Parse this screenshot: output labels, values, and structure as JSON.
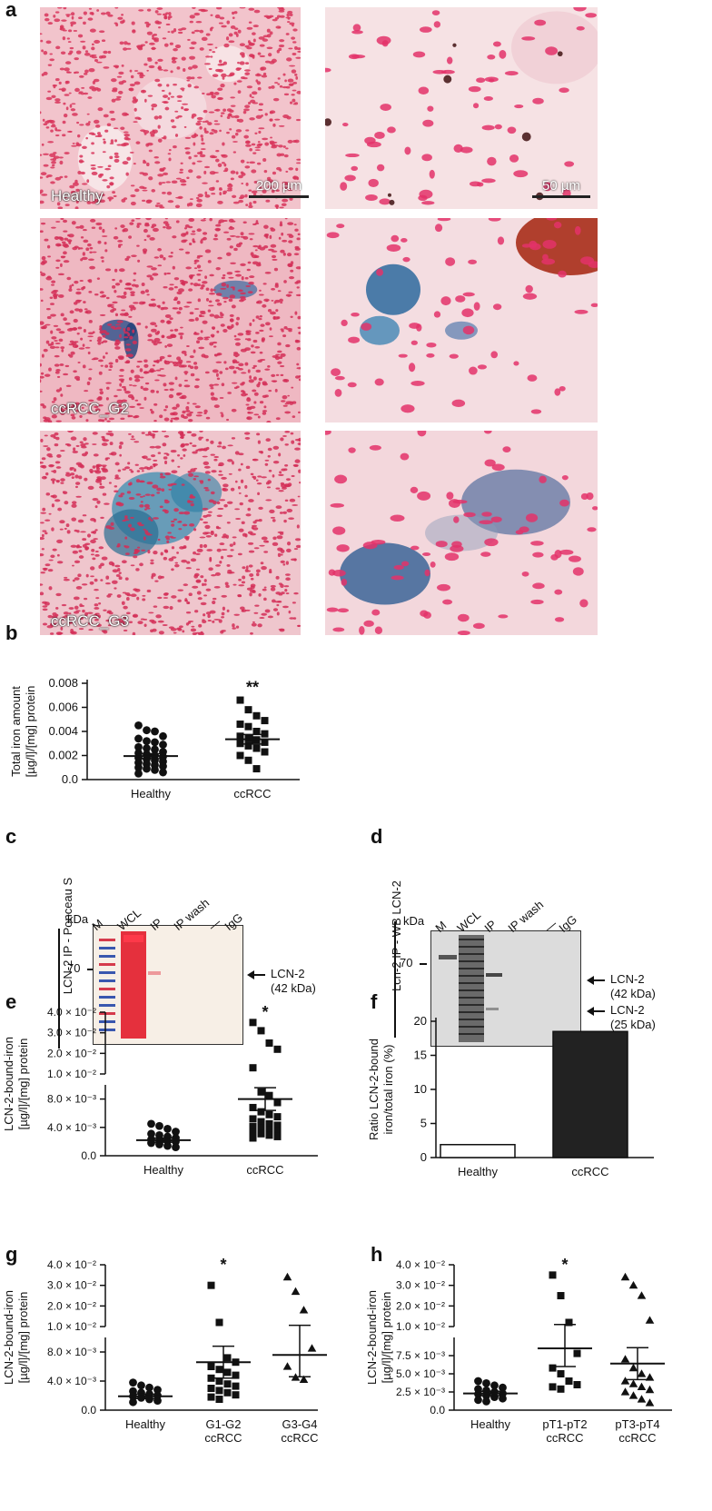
{
  "panels": {
    "a": "a",
    "b": "b",
    "c": "c",
    "d": "d",
    "e": "e",
    "f": "f",
    "g": "g",
    "h": "h"
  },
  "panel_a": {
    "labels": [
      "Healthy",
      "ccRCC_G2",
      "ccRCC_G3"
    ],
    "scalebars": [
      "200 µm",
      "50 µm"
    ]
  },
  "blot_c": {
    "side_label": "LCN-2 IP - Ponceau S",
    "kda": "kDa",
    "marker": "70",
    "lanes": [
      "M",
      "WCL",
      "IP",
      "IP wash",
      "—",
      "IgG"
    ],
    "arrow_labels": [
      [
        "LCN-2",
        "(42 kDa)"
      ]
    ]
  },
  "blot_d": {
    "side_label": "Lcn-2 IP - WB LCN-2",
    "kda": "kDa",
    "marker": "70",
    "lanes": [
      "M",
      "WCL",
      "IP",
      "IP wash",
      "—",
      "IgG"
    ],
    "arrow_labels": [
      [
        "LCN-2",
        "(42 kDa)"
      ],
      [
        "LCN-2",
        "(25 kDa)"
      ]
    ]
  },
  "chart_data": [
    {
      "panel": "b",
      "type": "scatter",
      "ylabel": [
        "Total iron amount",
        "[µg/l]/[mg] protein"
      ],
      "categories": [
        "Healthy",
        "ccRCC"
      ],
      "yticks": [
        "0.0",
        "0.002",
        "0.004",
        "0.006",
        "0.008"
      ],
      "ylim": [
        0,
        0.008
      ],
      "significance": [
        "",
        "**"
      ],
      "series": [
        {
          "name": "Healthy",
          "marker": "circle",
          "mean": 0.00195,
          "sem": 0.0002,
          "values": [
            0.0045,
            0.0041,
            0.004,
            0.0036,
            0.0034,
            0.0032,
            0.0031,
            0.0029,
            0.0027,
            0.0026,
            0.0025,
            0.0023,
            0.0022,
            0.0021,
            0.002,
            0.0019,
            0.0018,
            0.0017,
            0.0016,
            0.0015,
            0.0014,
            0.0013,
            0.0012,
            0.0011,
            0.001,
            0.0009,
            0.0008,
            0.0006,
            0.0005
          ]
        },
        {
          "name": "ccRCC",
          "marker": "square",
          "mean": 0.00335,
          "sem": 0.0004,
          "values": [
            0.0066,
            0.0058,
            0.0053,
            0.0049,
            0.0046,
            0.0044,
            0.004,
            0.0038,
            0.0036,
            0.0034,
            0.0033,
            0.0031,
            0.003,
            0.0028,
            0.0026,
            0.0023,
            0.002,
            0.0016,
            0.0009
          ]
        }
      ]
    },
    {
      "panel": "e",
      "type": "scatter",
      "broken_axis": true,
      "ylabel": [
        "LCN-2-bound-iron",
        "[µg/l]/[mg] protein"
      ],
      "categories": [
        "Healthy",
        "ccRCC"
      ],
      "yticks_low": [
        "0.0",
        "4.0 × 10⁻³",
        "8.0 × 10⁻³"
      ],
      "yticks_high": [
        "1.0 × 10⁻²",
        "2.0 × 10⁻²",
        "3.0 × 10⁻²",
        "4.0 × 10⁻²"
      ],
      "significance": [
        "",
        "*"
      ],
      "series": [
        {
          "name": "Healthy",
          "marker": "circle",
          "mean": 0.0022,
          "sem": 0.0003,
          "values": [
            0.0045,
            0.0042,
            0.0038,
            0.0034,
            0.0031,
            0.0029,
            0.0027,
            0.0025,
            0.0023,
            0.0022,
            0.0021,
            0.002,
            0.0018,
            0.0016,
            0.0014,
            0.0012
          ]
        },
        {
          "name": "ccRCC",
          "marker": "square",
          "mean": 0.008,
          "sem": 0.0016,
          "values": [
            0.035,
            0.031,
            0.025,
            0.022,
            0.013,
            0.009,
            0.0085,
            0.0075,
            0.0068,
            0.0062,
            0.0058,
            0.0055,
            0.0052,
            0.0048,
            0.0045,
            0.0043,
            0.0041,
            0.0039,
            0.0037,
            0.0035,
            0.0033,
            0.0031,
            0.0029,
            0.0027,
            0.0025
          ]
        }
      ]
    },
    {
      "panel": "f",
      "type": "bar",
      "ylabel": [
        "Ratio LCN-2-bound",
        "iron/total iron (%)"
      ],
      "categories": [
        "Healthy",
        "ccRCC"
      ],
      "values": [
        1.9,
        18.5
      ],
      "yticks": [
        "0",
        "5",
        "10",
        "15",
        "20"
      ],
      "ylim": [
        0,
        20
      ],
      "fills": [
        "#ffffff",
        "#222222"
      ]
    },
    {
      "panel": "g",
      "type": "scatter",
      "broken_axis": true,
      "ylabel": [
        "LCN-2-bound-iron",
        "[µg/l]/[mg] protein"
      ],
      "categories": [
        [
          "Healthy"
        ],
        [
          "G1-G2",
          "ccRCC"
        ],
        [
          "G3-G4",
          "ccRCC"
        ]
      ],
      "yticks_low": [
        "0.0",
        "4.0 × 10⁻³",
        "8.0 × 10⁻³"
      ],
      "yticks_high": [
        "1.0 × 10⁻²",
        "2.0 × 10⁻²",
        "3.0 × 10⁻²",
        "4.0 × 10⁻²"
      ],
      "significance": [
        "",
        "*",
        ""
      ],
      "series": [
        {
          "name": "Healthy",
          "marker": "circle",
          "mean": 0.0019,
          "sem": 0.0003,
          "values": [
            0.0038,
            0.0034,
            0.0031,
            0.0028,
            0.0026,
            0.0024,
            0.0022,
            0.002,
            0.0019,
            0.0017,
            0.0015,
            0.0013,
            0.0011
          ]
        },
        {
          "name": "G1-G2 ccRCC",
          "marker": "square",
          "mean": 0.0066,
          "sem": 0.0022,
          "values": [
            0.03,
            0.012,
            0.0072,
            0.0066,
            0.006,
            0.0056,
            0.0052,
            0.0048,
            0.0044,
            0.004,
            0.0036,
            0.0033,
            0.003,
            0.0027,
            0.0024,
            0.0021,
            0.0018,
            0.0015
          ]
        },
        {
          "name": "G3-G4 ccRCC",
          "marker": "triangle",
          "mean": 0.0076,
          "sem": 0.003,
          "values": [
            0.034,
            0.027,
            0.018,
            0.0085,
            0.006,
            0.0045,
            0.0042
          ]
        }
      ]
    },
    {
      "panel": "h",
      "type": "scatter",
      "broken_axis": true,
      "ylabel": [
        "LCN-2-bound-iron",
        "[µg/l]/[mg] protein"
      ],
      "categories": [
        [
          "Healthy"
        ],
        [
          "pT1-pT2",
          "ccRCC"
        ],
        [
          "pT3-pT4",
          "ccRCC"
        ]
      ],
      "yticks_low": [
        "0.0",
        "2.5 × 10⁻³",
        "5.0 × 10⁻³",
        "7.5 × 10⁻³"
      ],
      "yticks_high": [
        "1.0 × 10⁻²",
        "2.0 × 10⁻²",
        "3.0 × 10⁻²",
        "4.0 × 10⁻²"
      ],
      "significance": [
        "",
        "*",
        ""
      ],
      "series": [
        {
          "name": "Healthy",
          "marker": "circle",
          "mean": 0.0023,
          "sem": 0.0003,
          "values": [
            0.004,
            0.0037,
            0.0034,
            0.0031,
            0.0029,
            0.0027,
            0.0025,
            0.0023,
            0.0022,
            0.002,
            0.0018,
            0.0016,
            0.0014,
            0.0012
          ]
        },
        {
          "name": "pT1-pT2 ccRCC",
          "marker": "square",
          "mean": 0.0085,
          "sem": 0.0025,
          "values": [
            0.035,
            0.025,
            0.012,
            0.0078,
            0.0058,
            0.005,
            0.004,
            0.0035,
            0.0032,
            0.0029
          ]
        },
        {
          "name": "pT3-pT4 ccRCC",
          "marker": "triangle",
          "mean": 0.0064,
          "sem": 0.0022,
          "values": [
            0.034,
            0.03,
            0.025,
            0.013,
            0.007,
            0.0058,
            0.005,
            0.0045,
            0.004,
            0.0036,
            0.0032,
            0.0028,
            0.0025,
            0.002,
            0.0015,
            0.001
          ]
        }
      ]
    }
  ]
}
